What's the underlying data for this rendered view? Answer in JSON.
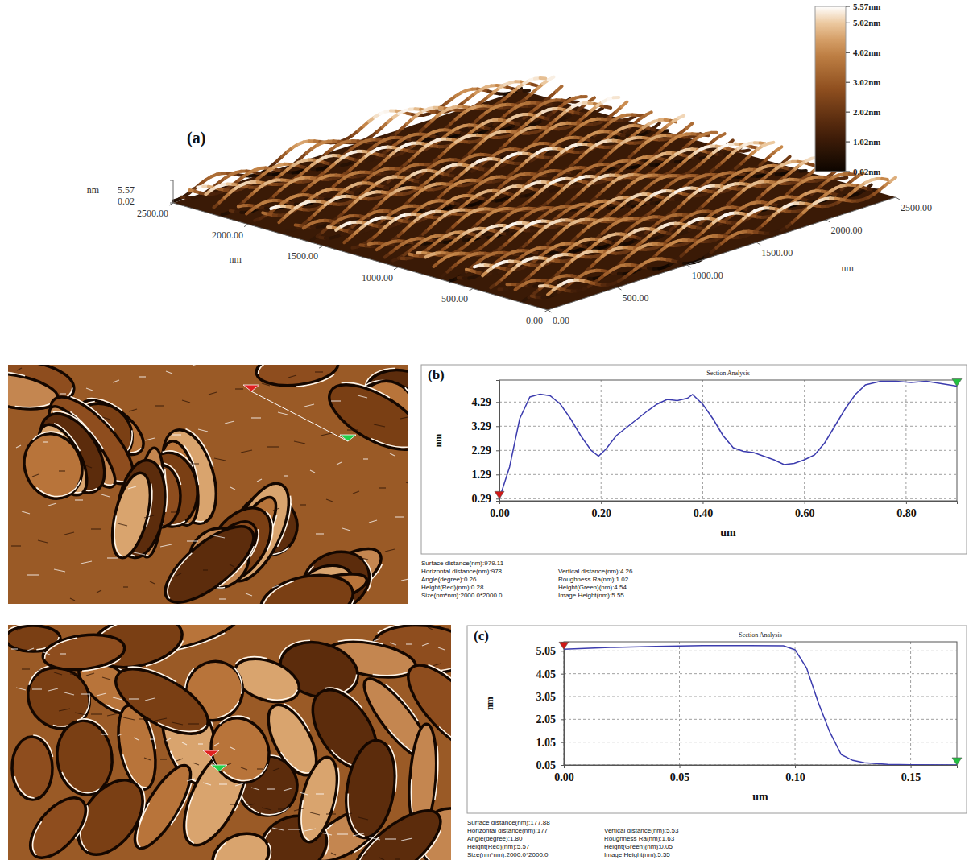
{
  "panel_a": {
    "label": "(a)",
    "x_unit": "nm",
    "y_unit": "nm",
    "z_unit": "nm",
    "xlim": [
      0,
      2500
    ],
    "ylim": [
      0,
      2500
    ],
    "zlim": [
      0.02,
      5.57
    ],
    "xticks": [
      {
        "value": 0,
        "label": "0.00"
      },
      {
        "value": 500,
        "label": "500.00"
      },
      {
        "value": 1000,
        "label": "1000.00"
      },
      {
        "value": 1500,
        "label": "1500.00"
      },
      {
        "value": 2000,
        "label": "2000.00"
      },
      {
        "value": 2500,
        "label": "2500.00"
      }
    ],
    "yticks": [
      {
        "value": 0,
        "label": "0.00"
      },
      {
        "value": 500,
        "label": "500.00"
      },
      {
        "value": 1000,
        "label": "1000.00"
      },
      {
        "value": 1500,
        "label": "1500.00"
      },
      {
        "value": 2000,
        "label": "2000.00"
      },
      {
        "value": 2500,
        "label": "2500.00"
      }
    ],
    "zticks": [
      5.57,
      0.02
    ],
    "colorbar": {
      "range": [
        0.02,
        5.57
      ],
      "ticks": [
        {
          "value": 5.57,
          "label": "5.57nm"
        },
        {
          "value": 5.02,
          "label": "5.02nm"
        },
        {
          "value": 4.02,
          "label": "4.02nm"
        },
        {
          "value": 3.02,
          "label": "3.02nm"
        },
        {
          "value": 2.02,
          "label": "2.02nm"
        },
        {
          "value": 1.02,
          "label": "1.02nm"
        },
        {
          "value": 0.02,
          "label": "0.02nm"
        }
      ]
    }
  },
  "chart_data": [
    {
      "type": "line",
      "label": "(b)",
      "title": "Section Analysis",
      "x_label": "um",
      "y_label": "nm",
      "color": "#3c3cae",
      "grid": true,
      "xlim": [
        0,
        0.9
      ],
      "ylim": [
        0.2,
        5.2
      ],
      "xticks": [
        {
          "value": 0,
          "label": "0.00"
        },
        {
          "value": 0.2,
          "label": "0.20"
        },
        {
          "value": 0.4,
          "label": "0.40"
        },
        {
          "value": 0.6,
          "label": "0.60"
        },
        {
          "value": 0.8,
          "label": "0.80"
        }
      ],
      "yticks": [
        0.29,
        1.29,
        2.29,
        3.29,
        4.29
      ],
      "x": [
        0,
        0.02,
        0.04,
        0.06,
        0.08,
        0.1,
        0.12,
        0.14,
        0.16,
        0.18,
        0.195,
        0.21,
        0.23,
        0.26,
        0.29,
        0.31,
        0.33,
        0.35,
        0.37,
        0.38,
        0.4,
        0.42,
        0.44,
        0.46,
        0.48,
        0.5,
        0.52,
        0.54,
        0.56,
        0.58,
        0.6,
        0.62,
        0.64,
        0.66,
        0.68,
        0.7,
        0.72,
        0.75,
        0.78,
        0.81,
        0.84,
        0.87,
        0.9
      ],
      "values": [
        0.29,
        1.6,
        3.6,
        4.5,
        4.62,
        4.55,
        4.2,
        3.6,
        2.9,
        2.3,
        2.05,
        2.35,
        2.9,
        3.4,
        3.9,
        4.2,
        4.4,
        4.35,
        4.45,
        4.6,
        4.2,
        3.6,
        2.9,
        2.4,
        2.25,
        2.2,
        2.05,
        1.9,
        1.7,
        1.75,
        1.9,
        2.1,
        2.6,
        3.3,
        4.0,
        4.6,
        5.0,
        5.15,
        5.15,
        5.1,
        5.15,
        5.05,
        4.95
      ],
      "info": [
        "Surface distance(nm):979.11",
        "Horizontal distance(nm):978",
        "Vertical distance(nm):4.26",
        "Angle(degree):0.26",
        "Roughness Ra(nm):1.02",
        "Height(Red)(nm):0.28",
        "Height(Green)(nm):4.54",
        "Size(nm*nm):2000.0*2000.0",
        "Image Height(nm):5.55"
      ]
    },
    {
      "type": "line",
      "label": "(c)",
      "title": "Section Analysis",
      "x_label": "um",
      "y_label": "nm",
      "color": "#3c3cae",
      "grid": true,
      "xlim": [
        0,
        0.17
      ],
      "ylim": [
        0.05,
        5.45
      ],
      "xticks": [
        {
          "value": 0,
          "label": "0.00"
        },
        {
          "value": 0.05,
          "label": "0.05"
        },
        {
          "value": 0.1,
          "label": "0.10"
        },
        {
          "value": 0.15,
          "label": "0.15"
        }
      ],
      "yticks": [
        0.05,
        1.05,
        2.05,
        3.05,
        4.05,
        5.05
      ],
      "x": [
        0,
        0.02,
        0.04,
        0.06,
        0.08,
        0.095,
        0.1,
        0.105,
        0.11,
        0.115,
        0.12,
        0.125,
        0.13,
        0.14,
        0.15,
        0.17
      ],
      "values": [
        5.12,
        5.2,
        5.25,
        5.28,
        5.28,
        5.27,
        5.1,
        4.3,
        2.8,
        1.5,
        0.5,
        0.25,
        0.15,
        0.08,
        0.06,
        0.05
      ],
      "info": [
        "Surface distance(nm):177.88",
        "Horizontal distance(nm):177",
        "Vertical distance(nm):5.53",
        "Angle(degree):1.80",
        "Roughness Ra(nm):1.63",
        "Height(Red)(nm):5.57",
        "Height(Green)(nm):0.05",
        "Size(nm*nm):2000.0*2000.0",
        "Image Height(nm):5.55"
      ]
    }
  ]
}
